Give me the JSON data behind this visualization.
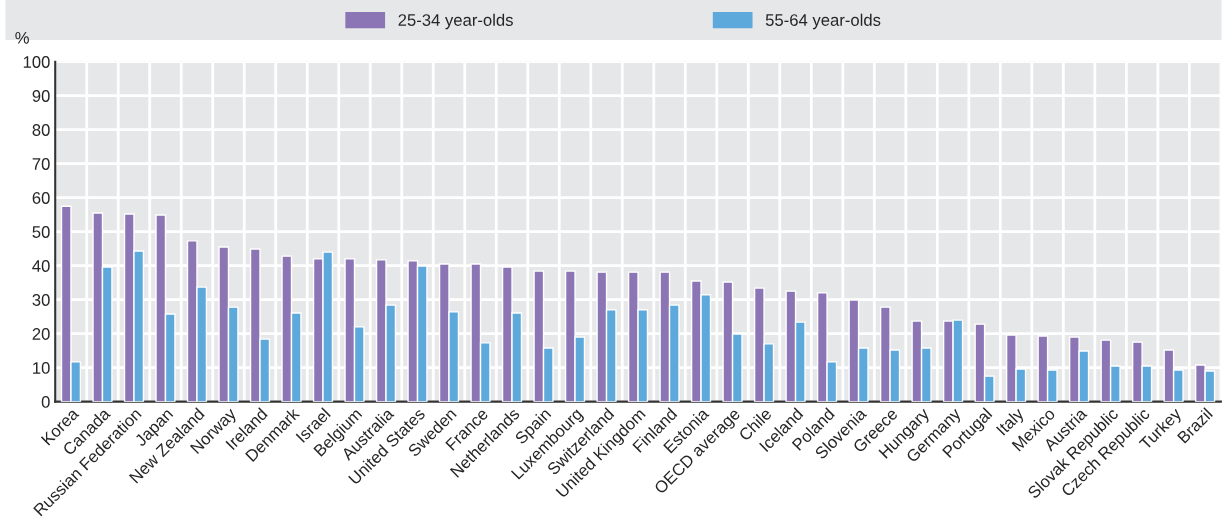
{
  "chart_data": {
    "type": "bar",
    "ylabel": "%",
    "categories": [
      "Korea",
      "Canada",
      "Russian Federation",
      "Japan",
      "New Zealand",
      "Norway",
      "Ireland",
      "Denmark",
      "Israel",
      "Belgium",
      "Australia",
      "United States",
      "Sweden",
      "France",
      "Netherlands",
      "Spain",
      "Luxembourg",
      "Switzerland",
      "United Kingdom",
      "Finland",
      "Estonia",
      "OECD average",
      "Chile",
      "Iceland",
      "Poland",
      "Slovenia",
      "Greece",
      "Hungary",
      "Germany",
      "Portugal",
      "Italy",
      "Mexico",
      "Austria",
      "Slovak Republic",
      "Czech Republic",
      "Turkey",
      "Brazil"
    ],
    "series": [
      {
        "name": "25-34 year-olds",
        "color": "#8b75b5",
        "values": [
          57.5,
          55.5,
          55.2,
          54.9,
          47.3,
          45.5,
          44.9,
          42.8,
          42.0,
          42.0,
          41.7,
          41.4,
          40.5,
          40.5,
          39.6,
          38.4,
          38.4,
          38.1,
          38.1,
          38.1,
          35.5,
          35.2,
          33.4,
          32.5,
          32.0,
          29.9,
          27.8,
          23.7,
          23.7,
          22.8,
          19.6,
          19.3,
          19.0,
          18.1,
          17.5,
          15.2,
          10.8
        ]
      },
      {
        "name": "55-64 year-olds",
        "color": "#5da9dc",
        "values": [
          11.7,
          39.6,
          44.3,
          25.8,
          33.7,
          27.8,
          18.4,
          26.1,
          44.0,
          22.0,
          28.4,
          39.9,
          26.4,
          17.3,
          26.1,
          15.8,
          19.0,
          27.0,
          27.0,
          28.4,
          31.4,
          19.9,
          17.0,
          23.4,
          11.7,
          15.8,
          15.2,
          15.8,
          24.0,
          7.5,
          9.6,
          9.3,
          14.9,
          10.5,
          10.5,
          9.3,
          9.0
        ]
      }
    ],
    "ylim": [
      0,
      100
    ],
    "yticks": [
      0,
      10,
      20,
      30,
      40,
      50,
      60,
      70,
      80,
      90,
      100
    ],
    "grid": true,
    "legend": "top"
  }
}
